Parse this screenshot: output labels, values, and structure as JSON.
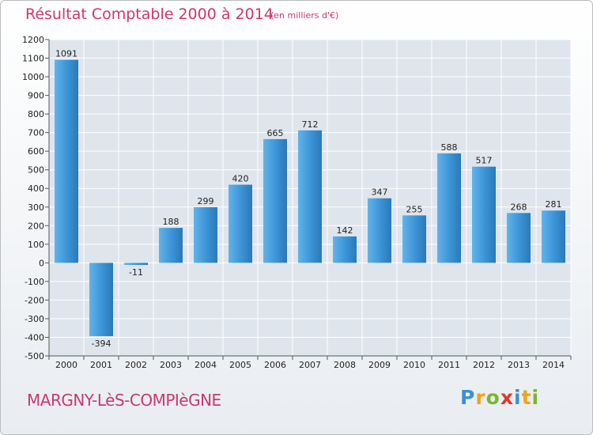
{
  "title": "Résultat Comptable 2000 à 2014",
  "unit": "(en milliers d'€)",
  "commune": "MARGNY-LèS-COMPIèGNE",
  "brand": {
    "letters": [
      "P",
      "r",
      "o",
      "x",
      "i",
      "t",
      "i"
    ],
    "colors": [
      "#3f8fd0",
      "#f2a21b",
      "#7ab532",
      "#e0372b",
      "#3f8fd0",
      "#f2a21b",
      "#7ab532"
    ]
  },
  "colors": {
    "bar": "#3a93d6",
    "bar_light": "#62b3ea",
    "bar_dark": "#2a79b8",
    "title": "#d2356a",
    "grid": "#ffffff"
  },
  "chart_data": {
    "type": "bar",
    "categories": [
      "2000",
      "2001",
      "2002",
      "2003",
      "2004",
      "2005",
      "2006",
      "2007",
      "2008",
      "2009",
      "2010",
      "2011",
      "2012",
      "2013",
      "2014"
    ],
    "values": [
      1091,
      -394,
      -11,
      188,
      299,
      420,
      665,
      712,
      142,
      347,
      255,
      588,
      517,
      268,
      281
    ],
    "value_labels": [
      "1091",
      "-394",
      "-11",
      "188",
      "299",
      "420",
      "665",
      "712",
      "142",
      "347",
      "255",
      "588",
      "517",
      "268",
      "281"
    ],
    "yticks": [
      1200,
      1100,
      1000,
      900,
      800,
      700,
      600,
      500,
      400,
      300,
      200,
      100,
      0,
      -100,
      -200,
      -300,
      -400,
      -500
    ],
    "ylim": [
      -500,
      1200
    ],
    "grid": true
  }
}
